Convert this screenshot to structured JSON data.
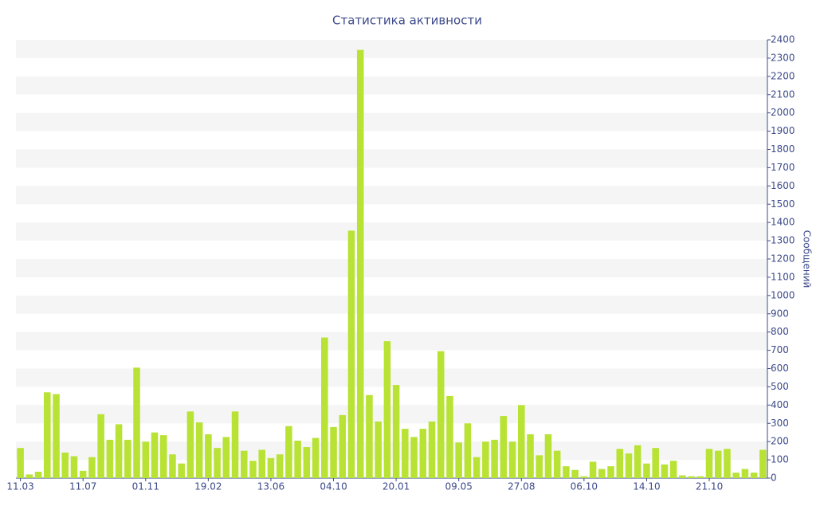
{
  "chart_data": {
    "type": "bar",
    "title": "Статистика активности",
    "y_label": "Сообщений",
    "categories": [
      "11.03",
      null,
      null,
      null,
      null,
      null,
      null,
      "11.07",
      null,
      null,
      null,
      null,
      null,
      null,
      "01.11",
      null,
      null,
      null,
      null,
      null,
      null,
      "19.02",
      null,
      null,
      null,
      null,
      null,
      null,
      "13.06",
      null,
      null,
      null,
      null,
      null,
      null,
      "04.10",
      null,
      null,
      null,
      null,
      null,
      null,
      "20.01",
      null,
      null,
      null,
      null,
      null,
      null,
      "09.05",
      null,
      null,
      null,
      null,
      null,
      null,
      "27.08",
      null,
      null,
      null,
      null,
      null,
      null,
      "06.10",
      null,
      null,
      null,
      null,
      null,
      null,
      "14.10",
      null,
      null,
      null,
      null,
      null,
      null,
      "21.10",
      null,
      null,
      null,
      null,
      null,
      null
    ],
    "values": [
      165,
      20,
      35,
      470,
      460,
      140,
      120,
      40,
      115,
      350,
      210,
      295,
      210,
      605,
      200,
      250,
      235,
      130,
      80,
      365,
      305,
      240,
      165,
      225,
      365,
      150,
      95,
      155,
      110,
      130,
      285,
      205,
      170,
      220,
      770,
      280,
      345,
      1355,
      2345,
      455,
      310,
      750,
      510,
      270,
      225,
      270,
      310,
      695,
      450,
      195,
      300,
      115,
      200,
      210,
      340,
      200,
      400,
      240,
      125,
      240,
      150,
      65,
      45,
      10,
      90,
      50,
      65,
      160,
      135,
      180,
      80,
      165,
      75,
      95,
      15,
      10,
      10,
      160,
      150,
      160,
      30,
      50,
      30,
      155
    ],
    "color": "#b8e234",
    "ylim": [
      0,
      2400
    ],
    "yticks": [
      0,
      100,
      200,
      300,
      400,
      500,
      600,
      700,
      800,
      900,
      1000,
      1100,
      1200,
      1300,
      1400,
      1500,
      1600,
      1700,
      1800,
      1900,
      2000,
      2100,
      2200,
      2300,
      2400
    ],
    "grid": true
  }
}
